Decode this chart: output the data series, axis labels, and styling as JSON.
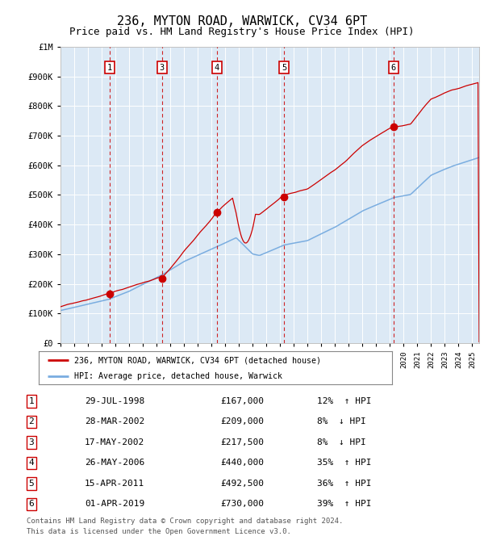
{
  "title": "236, MYTON ROAD, WARWICK, CV34 6PT",
  "subtitle": "Price paid vs. HM Land Registry's House Price Index (HPI)",
  "title_fontsize": 11,
  "subtitle_fontsize": 9,
  "hpi_legend": "HPI: Average price, detached house, Warwick",
  "prop_legend": "236, MYTON ROAD, WARWICK, CV34 6PT (detached house)",
  "plot_bg_color": "#dce9f5",
  "outer_bg": "#ffffff",
  "xmin": 1995.0,
  "xmax": 2025.5,
  "ymin": 0,
  "ymax": 1000000,
  "yticks": [
    0,
    100000,
    200000,
    300000,
    400000,
    500000,
    600000,
    700000,
    800000,
    900000,
    1000000
  ],
  "ytick_labels": [
    "£0",
    "£100K",
    "£200K",
    "£300K",
    "£400K",
    "£500K",
    "£600K",
    "£700K",
    "£800K",
    "£900K",
    "£1M"
  ],
  "transactions": [
    {
      "num": 1,
      "date": "29-JUL-1998",
      "price": 167000,
      "year": 1998.58,
      "pct": "12%",
      "dir": "↑",
      "show_on_chart": true
    },
    {
      "num": 2,
      "date": "28-MAR-2002",
      "price": 209000,
      "year": 2002.24,
      "pct": "8%",
      "dir": "↓",
      "show_on_chart": false
    },
    {
      "num": 3,
      "date": "17-MAY-2002",
      "price": 217500,
      "year": 2002.38,
      "pct": "8%",
      "dir": "↓",
      "show_on_chart": true
    },
    {
      "num": 4,
      "date": "26-MAY-2006",
      "price": 440000,
      "year": 2006.4,
      "pct": "35%",
      "dir": "↑",
      "show_on_chart": true
    },
    {
      "num": 5,
      "date": "15-APR-2011",
      "price": 492500,
      "year": 2011.29,
      "pct": "36%",
      "dir": "↑",
      "show_on_chart": true
    },
    {
      "num": 6,
      "date": "01-APR-2019",
      "price": 730000,
      "year": 2019.25,
      "pct": "39%",
      "dir": "↑",
      "show_on_chart": true
    }
  ],
  "footer1": "Contains HM Land Registry data © Crown copyright and database right 2024.",
  "footer2": "This data is licensed under the Open Government Licence v3.0.",
  "prop_color": "#cc0000",
  "hpi_color": "#7aade0",
  "vline_color": "#cc0000",
  "box_color": "#cc0000"
}
